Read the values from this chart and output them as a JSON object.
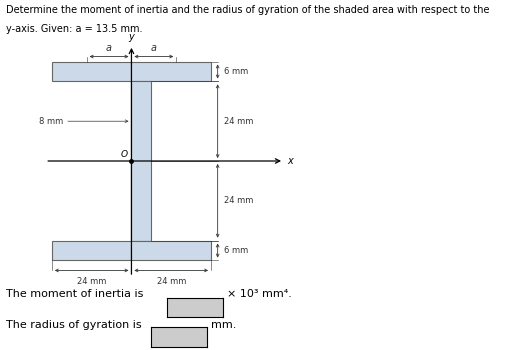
{
  "title_line1": "Determine the moment of inertia and the radius of gyration of the shaded area with respect to the",
  "title_line2": "y-axis. Given: a = 13.5 mm.",
  "shape_color": "#ccd9e8",
  "shape_edge_color": "#666666",
  "dim_color": "#333333",
  "text_color": "#000000",
  "answer_box_color": "#cccccc",
  "fig_width": 5.31,
  "fig_height": 3.5,
  "moment_label": "The moment of inertia is",
  "gyration_label": "The radius of gyration is",
  "moment_units": "× 10³ mm⁴.",
  "gyration_units": "mm.",
  "label_8mm": "8 mm",
  "label_6mm_top": "6 mm",
  "label_24mm_top": "24 mm",
  "label_24mm_bot": "24 mm",
  "label_6mm_bot": "6 mm",
  "label_24mm_left": "24 mm",
  "label_24mm_right": "24 mm",
  "label_a_left": "a",
  "label_a_right": "a",
  "label_O": "O",
  "label_x": "x",
  "label_y": "y",
  "note_italic": "a = 13.5 mm"
}
